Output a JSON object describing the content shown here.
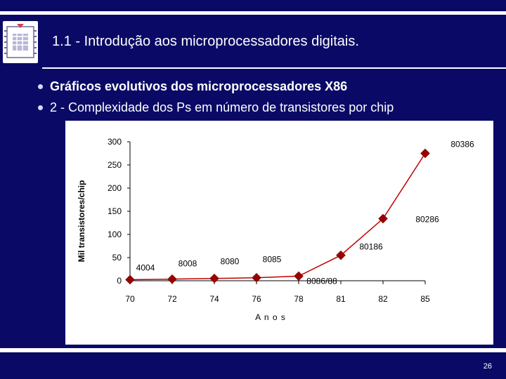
{
  "slide": {
    "title": "1.1 - Introdução aos microprocessadores digitais.",
    "bullets": [
      "Gráficos evolutivos dos microprocessadores X86",
      "2 -  Complexidade dos Ps em número de transistores por chip"
    ],
    "page_number": "26",
    "logo_icon": "chip-logo-icon"
  },
  "colors": {
    "background": "#0a0a66",
    "accent": "#ffffff",
    "series_line": "#c00000",
    "marker": "#990000"
  },
  "chart_data": {
    "type": "line",
    "title": "",
    "xlabel": "A n o s",
    "ylabel": "Mil transistores/chip",
    "categories": [
      "70",
      "72",
      "74",
      "76",
      "78",
      "81",
      "82",
      "85"
    ],
    "series": [
      {
        "values": [
          2.3,
          3.5,
          5,
          6.5,
          10,
          55,
          134,
          275
        ]
      }
    ],
    "point_labels": [
      "4004",
      "8008",
      "8080",
      "8085",
      "8086/88",
      "80186",
      "80286",
      "80386"
    ],
    "ylim": [
      0,
      300
    ],
    "yticks": [
      0,
      50,
      100,
      150,
      200,
      250,
      300
    ],
    "grid": false,
    "legend": "none"
  }
}
